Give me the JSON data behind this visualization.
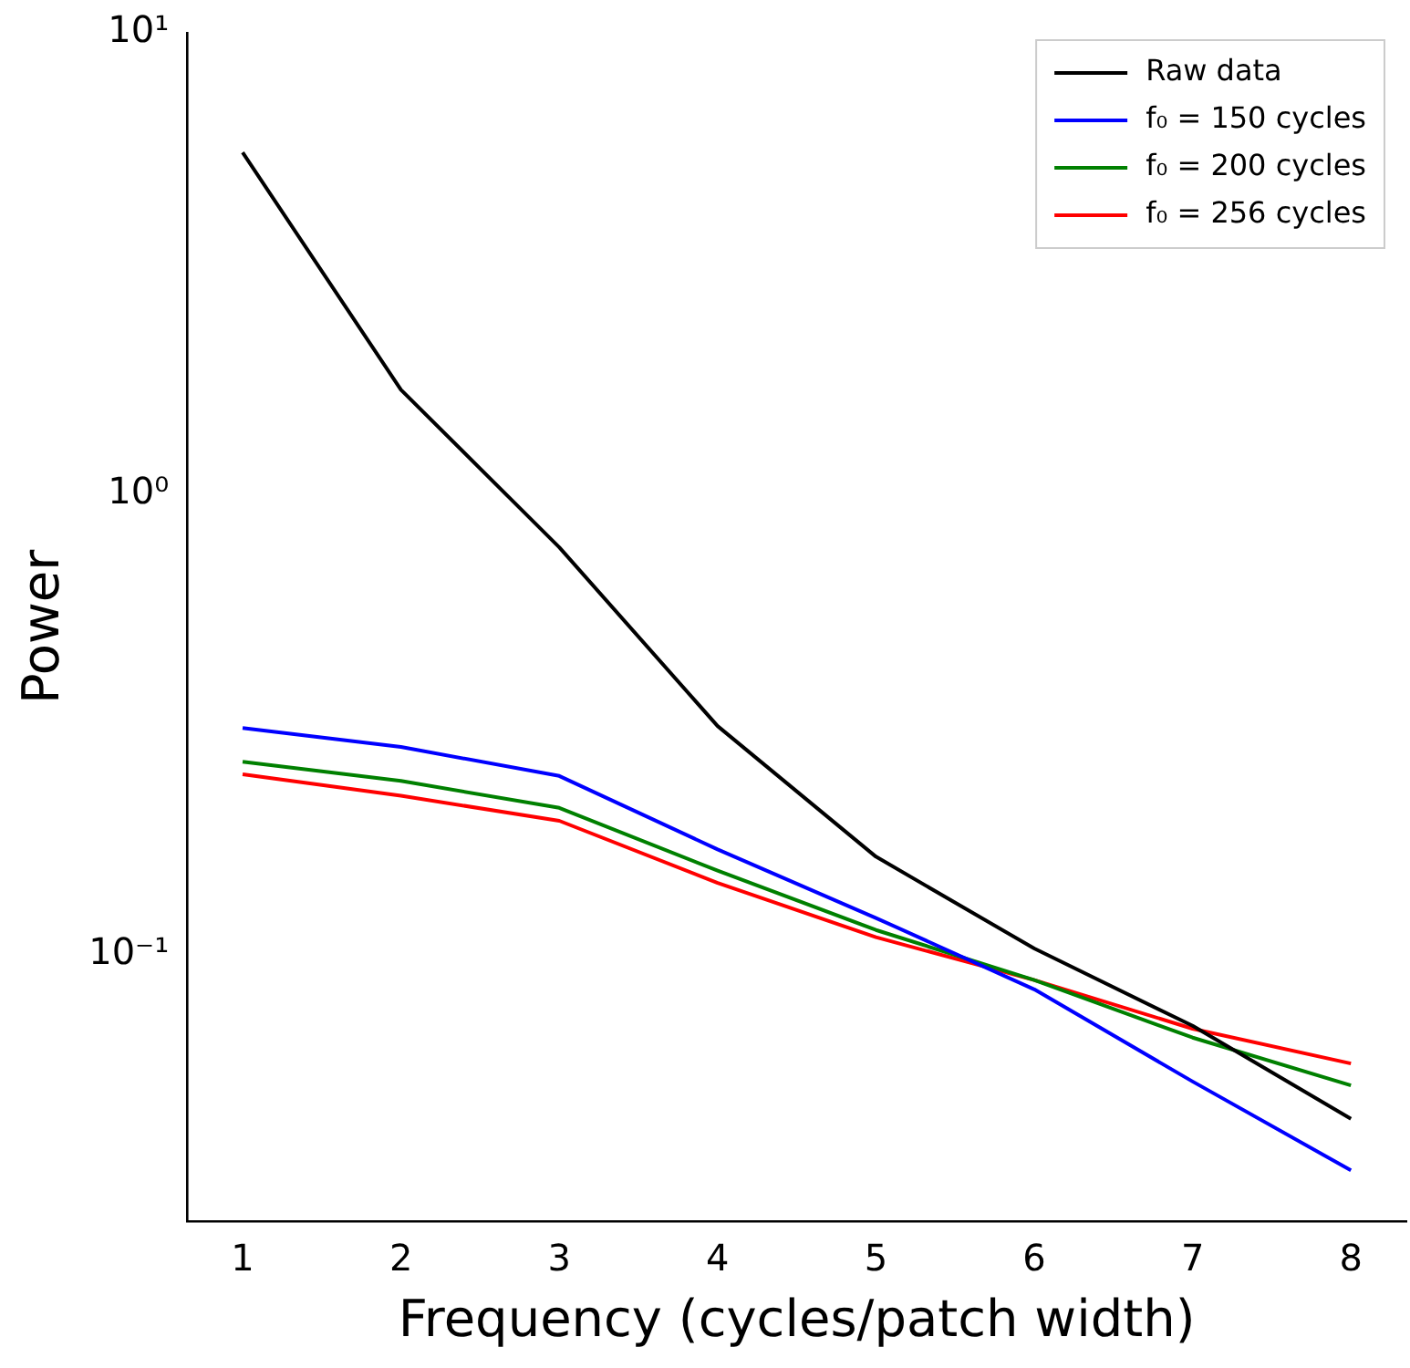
{
  "chart_data": {
    "type": "line",
    "xlabel": "Frequency (cycles/patch width)",
    "ylabel": "Power",
    "x": [
      1,
      2,
      3,
      4,
      5,
      6,
      7,
      8
    ],
    "series": [
      {
        "name": "Raw data",
        "color": "#000000",
        "values": [
          5.5,
          1.68,
          0.765,
          0.313,
          0.163,
          0.103,
          0.07,
          0.044
        ]
      },
      {
        "name": "f₀ = 150 cycles",
        "color": "#0000ff",
        "values": [
          0.31,
          0.282,
          0.244,
          0.169,
          0.12,
          0.084,
          0.053,
          0.034
        ]
      },
      {
        "name": "f₀ = 200 cycles",
        "color": "#008000",
        "values": [
          0.262,
          0.238,
          0.208,
          0.152,
          0.113,
          0.088,
          0.066,
          0.052
        ]
      },
      {
        "name": "f₀ = 256 cycles",
        "color": "#ff0000",
        "values": [
          0.246,
          0.221,
          0.195,
          0.143,
          0.109,
          0.088,
          0.069,
          0.058
        ]
      }
    ],
    "log": "y",
    "xlim": [
      0.65,
      8.35
    ],
    "ylim": [
      0.0264,
      10
    ],
    "xticks": [
      1,
      2,
      3,
      4,
      5,
      6,
      7,
      8
    ],
    "yticks": [
      {
        "value": 0.1,
        "label": "10⁻¹"
      },
      {
        "value": 1,
        "label": "10⁰"
      },
      {
        "value": 10,
        "label": "10¹"
      }
    ],
    "grid": false,
    "legend": "top right",
    "marker": "none",
    "line_style": "solid"
  }
}
